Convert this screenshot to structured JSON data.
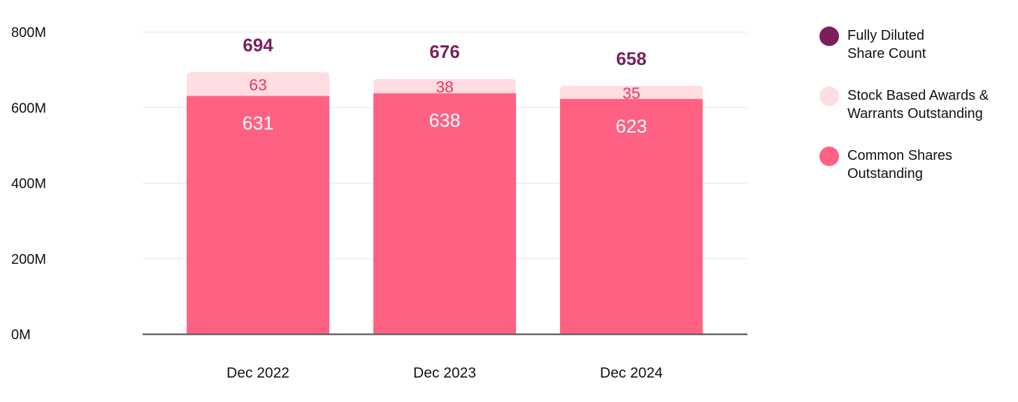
{
  "chart_data": {
    "type": "bar",
    "stacked": true,
    "categories": [
      "Dec 2022",
      "Dec 2023",
      "Dec 2024"
    ],
    "series": [
      {
        "name": "Common Shares Outstanding",
        "values": [
          631,
          638,
          623
        ],
        "color": "#ff6183"
      },
      {
        "name": "Stock Based Awards & Warrants Outstanding",
        "values": [
          63,
          38,
          35
        ],
        "color": "#ffdde3"
      }
    ],
    "totals": {
      "name": "Fully Diluted Share Count",
      "values": [
        694,
        676,
        658
      ],
      "color": "#7a1f5c"
    },
    "segment_label_colors": {
      "common": "#ffffff",
      "awards": "#e8365d"
    },
    "y_ticks": [
      0,
      200,
      400,
      600,
      800
    ],
    "y_tick_labels": [
      "0M",
      "200M",
      "400M",
      "600M",
      "800M"
    ],
    "ylim": [
      0,
      800
    ],
    "grid": true,
    "legend_position": "right",
    "legend": [
      {
        "label": "Fully Diluted\nShare Count",
        "color": "#7a1f5c"
      },
      {
        "label": "Stock Based Awards &\nWarrants Outstanding",
        "color": "#ffdde3"
      },
      {
        "label": "Common Shares\nOutstanding",
        "color": "#ff6183"
      }
    ]
  }
}
